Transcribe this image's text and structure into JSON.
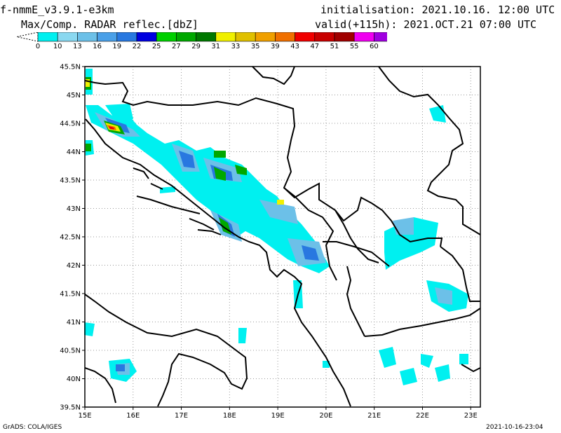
{
  "header": {
    "model": "f-nmmE_v3.9.1-e3km",
    "field": "Max/Comp. RADAR reflec.[dbZ]",
    "init_label": "initialisation:",
    "init_value": "2021.10.16. 12:00 UTC",
    "valid_label": "valid(+115h):",
    "valid_value": "2021.OCT.21 07:00 UTC"
  },
  "colorbar": {
    "labels": [
      "0",
      "10",
      "13",
      "16",
      "19",
      "22",
      "25",
      "27",
      "29",
      "31",
      "33",
      "35",
      "39",
      "43",
      "47",
      "51",
      "55",
      "60"
    ],
    "colors": [
      "#00f0f0",
      "#8ad8f0",
      "#6cc0e8",
      "#4aa0e8",
      "#2878e0",
      "#0000e0",
      "#00d000",
      "#00a800",
      "#007800",
      "#f0f000",
      "#e0c000",
      "#f0a000",
      "#f07000",
      "#f00000",
      "#c80000",
      "#a00000",
      "#f000f0",
      "#a000e0"
    ]
  },
  "map": {
    "lat_ticks": [
      "45.5N",
      "45N",
      "44.5N",
      "44N",
      "43.5N",
      "43N",
      "42.5N",
      "42N",
      "41.5N",
      "41N",
      "40.5N",
      "40N",
      "39.5N"
    ],
    "lon_ticks": [
      "15E",
      "16E",
      "17E",
      "18E",
      "19E",
      "20E",
      "21E",
      "22E",
      "23E"
    ],
    "lon_range": [
      15,
      23.2
    ],
    "lat_range": [
      39.5,
      45.5
    ]
  },
  "footer": {
    "left": "GrADS: COLA/IGES",
    "right": "2021-10-16-23:04"
  }
}
